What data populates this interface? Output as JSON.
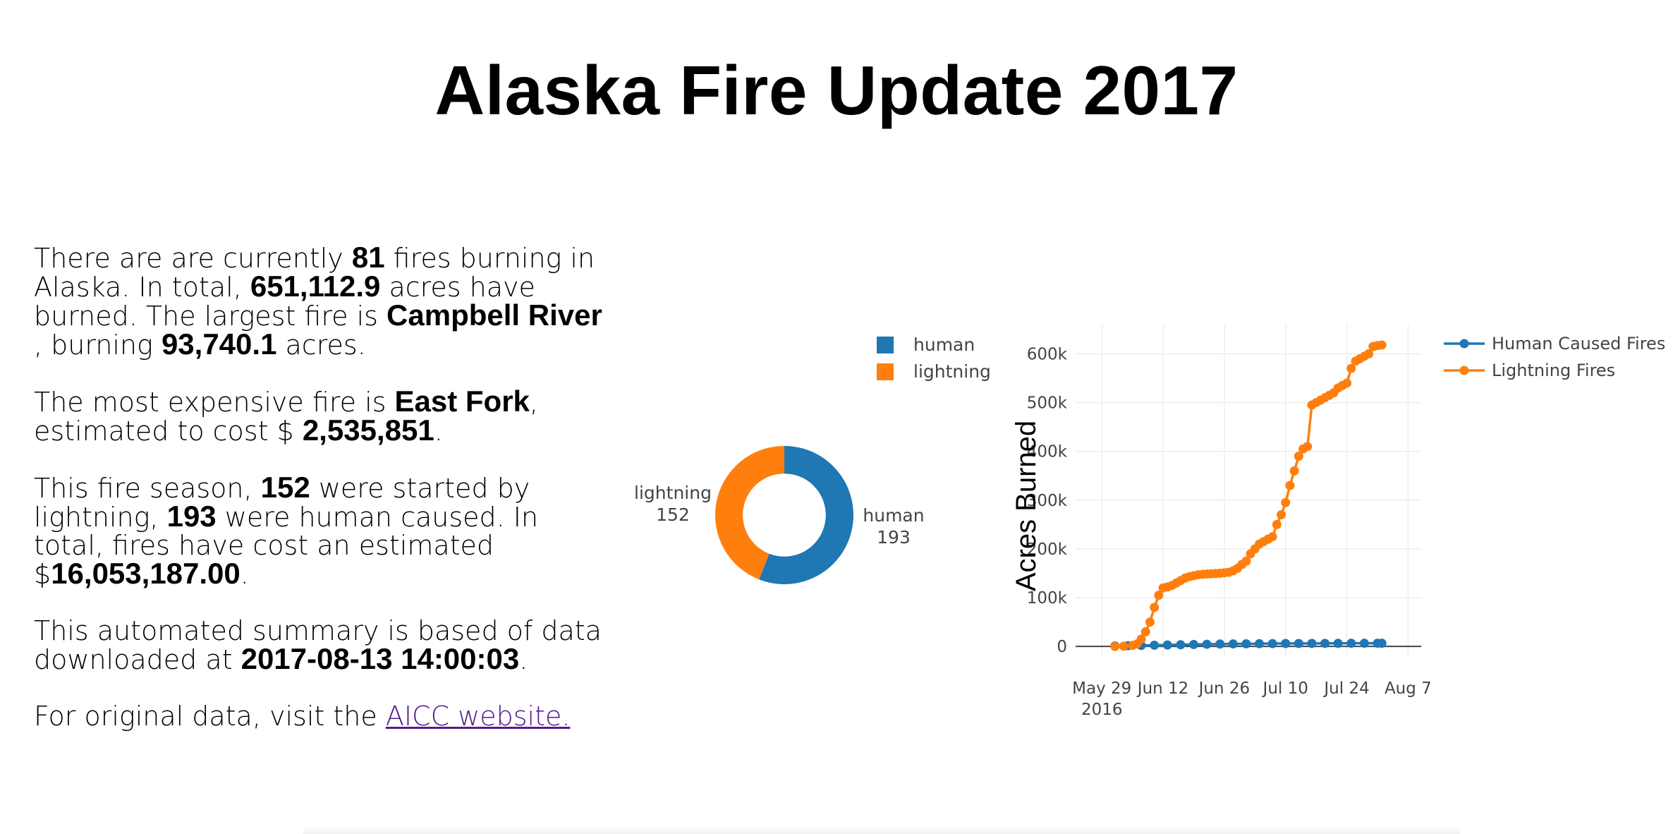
{
  "page": {
    "title": "Alaska Fire Update 2017"
  },
  "summary": {
    "p1": {
      "t1": "There are are currently ",
      "fires_burning": "81",
      "t2": " fires burning in Alaska. In total, ",
      "acres_burned": "651,112.9",
      "t3": " acres have burned. The largest fire is ",
      "largest_fire": "Campbell River",
      "t4": " , burning ",
      "largest_acres": "93,740.1",
      "t5": " acres."
    },
    "p2": {
      "t1": "The most expensive fire is ",
      "expensive_fire": "East Fork",
      "t2": ", estimated to cost $ ",
      "expensive_cost": "2,535,851",
      "t3": "."
    },
    "p3": {
      "t1": "This fire season, ",
      "lightning_count": "152",
      "t2": " were started by lightning, ",
      "human_count": "193",
      "t3": " were human caused. In total, fires have cost an estimated $",
      "total_cost": "16,053,187.00",
      "t4": "."
    },
    "p4": {
      "t1": "This automated summary is based of data downloaded at ",
      "download_time": "2017-08-13 14:00:03",
      "t2": "."
    },
    "p5": {
      "t1": "For original data, visit the ",
      "link_label": "AICC website."
    }
  },
  "colors": {
    "human": "#1f77b4",
    "lightning": "#ff7f0e",
    "grid": "#eeeeee",
    "zeroline": "#444444",
    "link": "#551a8b"
  },
  "chart_data": [
    {
      "type": "pie",
      "hole": 0.6,
      "labels": [
        "human",
        "lightning"
      ],
      "values": [
        193,
        152
      ],
      "legend": [
        "human",
        "lightning"
      ],
      "legend_position": "top-right",
      "slice_labels": [
        {
          "name": "human",
          "value": "193"
        },
        {
          "name": "lightning",
          "value": "152"
        }
      ]
    },
    {
      "type": "line",
      "ylabel": "Acres Burned",
      "xlabel": "",
      "xlim": [
        "2016-05-23",
        "2016-08-10"
      ],
      "ylim": [
        -20000,
        660000
      ],
      "x_ticks": [
        "May 29",
        "Jun 12",
        "Jun 26",
        "Jul 10",
        "Jul 24",
        "Aug 7"
      ],
      "x_tick_dates": [
        "2016-05-29",
        "2016-06-12",
        "2016-06-26",
        "2016-07-10",
        "2016-07-24",
        "2016-08-07"
      ],
      "x_tick_sublabel": "2016",
      "y_ticks": [
        {
          "value": 0,
          "label": "0"
        },
        {
          "value": 100000,
          "label": "100k"
        },
        {
          "value": 200000,
          "label": "200k"
        },
        {
          "value": 300000,
          "label": "300k"
        },
        {
          "value": 400000,
          "label": "400k"
        },
        {
          "value": 500000,
          "label": "500k"
        },
        {
          "value": 600000,
          "label": "600k"
        }
      ],
      "grid": true,
      "legend_position": "top-right",
      "series": [
        {
          "name": "Human Caused Fires",
          "color": "#1f77b4",
          "x": [
            "2016-06-01",
            "2016-06-04",
            "2016-06-07",
            "2016-06-10",
            "2016-06-13",
            "2016-06-16",
            "2016-06-19",
            "2016-06-22",
            "2016-06-25",
            "2016-06-28",
            "2016-07-01",
            "2016-07-04",
            "2016-07-07",
            "2016-07-10",
            "2016-07-13",
            "2016-07-16",
            "2016-07-19",
            "2016-07-22",
            "2016-07-25",
            "2016-07-28",
            "2016-07-31",
            "2016-08-01"
          ],
          "y": [
            1000,
            1500,
            2000,
            2500,
            3000,
            3500,
            4000,
            4500,
            5000,
            5200,
            5400,
            5600,
            5800,
            6000,
            6100,
            6200,
            6300,
            6400,
            6500,
            6500,
            6600,
            6600
          ]
        },
        {
          "name": "Lightning Fires",
          "color": "#ff7f0e",
          "x": [
            "2016-06-01",
            "2016-06-03",
            "2016-06-05",
            "2016-06-06",
            "2016-06-07",
            "2016-06-08",
            "2016-06-09",
            "2016-06-10",
            "2016-06-11",
            "2016-06-12",
            "2016-06-13",
            "2016-06-14",
            "2016-06-15",
            "2016-06-16",
            "2016-06-17",
            "2016-06-18",
            "2016-06-19",
            "2016-06-20",
            "2016-06-21",
            "2016-06-22",
            "2016-06-23",
            "2016-06-24",
            "2016-06-25",
            "2016-06-26",
            "2016-06-27",
            "2016-06-28",
            "2016-06-29",
            "2016-06-30",
            "2016-07-01",
            "2016-07-02",
            "2016-07-03",
            "2016-07-04",
            "2016-07-05",
            "2016-07-06",
            "2016-07-07",
            "2016-07-08",
            "2016-07-09",
            "2016-07-10",
            "2016-07-11",
            "2016-07-12",
            "2016-07-13",
            "2016-07-14",
            "2016-07-15",
            "2016-07-16",
            "2016-07-17",
            "2016-07-18",
            "2016-07-19",
            "2016-07-20",
            "2016-07-21",
            "2016-07-22",
            "2016-07-23",
            "2016-07-24",
            "2016-07-25",
            "2016-07-26",
            "2016-07-27",
            "2016-07-28",
            "2016-07-29",
            "2016-07-30",
            "2016-07-31",
            "2016-08-01"
          ],
          "y": [
            0,
            500,
            2000,
            5000,
            15000,
            30000,
            50000,
            80000,
            105000,
            120000,
            122000,
            125000,
            130000,
            135000,
            140000,
            143000,
            145000,
            147000,
            148000,
            148500,
            149000,
            149500,
            150000,
            151000,
            152000,
            155000,
            160000,
            168000,
            175000,
            190000,
            200000,
            210000,
            215000,
            220000,
            225000,
            250000,
            270000,
            295000,
            330000,
            360000,
            390000,
            405000,
            410000,
            495000,
            500000,
            505000,
            510000,
            515000,
            520000,
            530000,
            535000,
            540000,
            570000,
            585000,
            590000,
            595000,
            600000,
            615000,
            617000,
            618000
          ]
        }
      ]
    }
  ]
}
